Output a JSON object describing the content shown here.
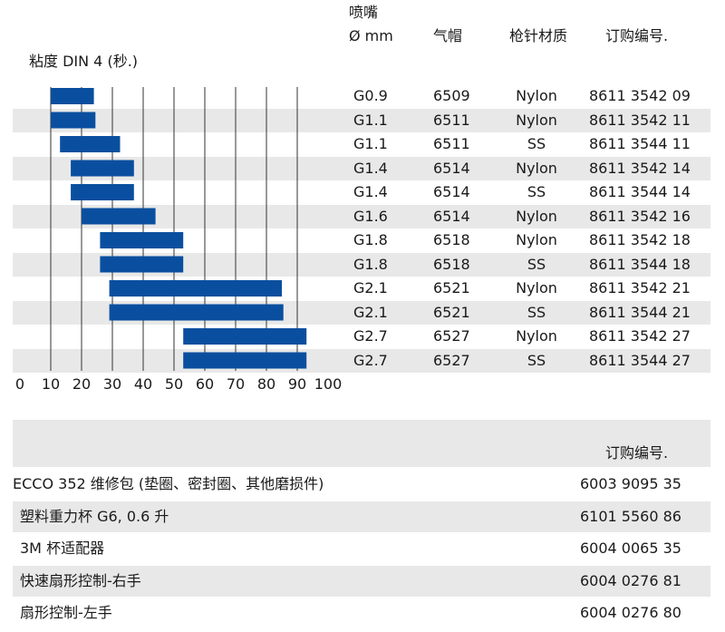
{
  "headers": {
    "viscosity": "粘度 DIN 4 (秒.)",
    "nozzle_line1": "喷嘴",
    "nozzle_line2": "Ø mm",
    "air_cap": "气帽",
    "needle_material": "枪针材质",
    "order_no": "订购编号."
  },
  "chart_data": {
    "type": "bar",
    "orientation": "horizontal-range",
    "xlim": [
      0,
      100
    ],
    "x_ticks": [
      "0",
      "10",
      "20",
      "30",
      "40",
      "50",
      "60",
      "70",
      "80",
      "90",
      "100"
    ],
    "grid": "vertical",
    "bar_color": "#0a4f9f",
    "ranges": [
      [
        10,
        24
      ],
      [
        10,
        24.5
      ],
      [
        13,
        32.5
      ],
      [
        16.5,
        37
      ],
      [
        16.5,
        37
      ],
      [
        20,
        44
      ],
      [
        26,
        53
      ],
      [
        26,
        53
      ],
      [
        29,
        85
      ],
      [
        29,
        85.5
      ],
      [
        53,
        93
      ],
      [
        53,
        93
      ]
    ]
  },
  "rows": [
    {
      "nozzle": "G0.9",
      "cap": "6509",
      "material": "Nylon",
      "part": "8611 3542 09"
    },
    {
      "nozzle": "G1.1",
      "cap": "6511",
      "material": "Nylon",
      "part": "8611 3542 11"
    },
    {
      "nozzle": "G1.1",
      "cap": "6511",
      "material": "SS",
      "part": "8611 3544 11"
    },
    {
      "nozzle": "G1.4",
      "cap": "6514",
      "material": "Nylon",
      "part": "8611 3542 14"
    },
    {
      "nozzle": "G1.4",
      "cap": "6514",
      "material": "SS",
      "part": "8611 3544 14"
    },
    {
      "nozzle": "G1.6",
      "cap": "6514",
      "material": "Nylon",
      "part": "8611 3542 16"
    },
    {
      "nozzle": "G1.8",
      "cap": "6518",
      "material": "Nylon",
      "part": "8611 3542 18"
    },
    {
      "nozzle": "G1.8",
      "cap": "6518",
      "material": "SS",
      "part": "8611 3544 18"
    },
    {
      "nozzle": "G2.1",
      "cap": "6521",
      "material": "Nylon",
      "part": "8611 3542 21"
    },
    {
      "nozzle": "G2.1",
      "cap": "6521",
      "material": "SS",
      "part": "8611 3544 21"
    },
    {
      "nozzle": "G2.7",
      "cap": "6527",
      "material": "Nylon",
      "part": "8611 3542 27"
    },
    {
      "nozzle": "G2.7",
      "cap": "6527",
      "material": "SS",
      "part": "8611 3544 27"
    }
  ],
  "accessories": {
    "order_no": "订购编号.",
    "items": [
      {
        "label": "ECCO 352 维修包 (垫圈、密封圈、其他磨损件)",
        "part": "6003 9095 35"
      },
      {
        "label": "塑料重力杯 G6, 0.6 升",
        "part": "6101 5560 86"
      },
      {
        "label": "3M 杯适配器",
        "part": "6004 0065 35"
      },
      {
        "label": "快速扇形控制-右手",
        "part": "6004 0276 81"
      },
      {
        "label": "扇形控制-左手",
        "part": "6004 0276 80"
      }
    ]
  }
}
